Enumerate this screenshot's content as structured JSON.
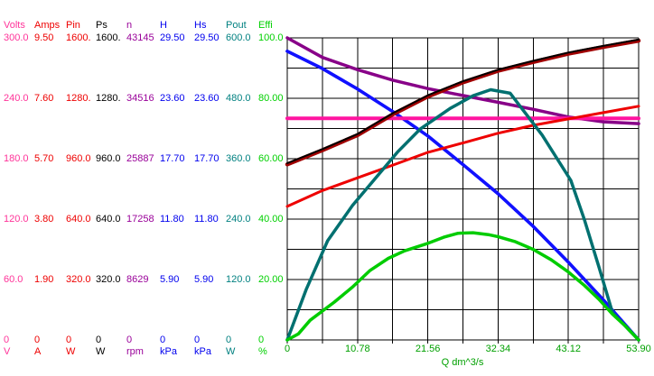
{
  "table": {
    "columns": [
      {
        "name": "Volts",
        "unit": "V",
        "color": "#FF3399",
        "values": [
          "300.0",
          "240.0",
          "180.0",
          "120.0",
          "60.0",
          "0"
        ]
      },
      {
        "name": "Amps",
        "unit": "A",
        "color": "#EE0000",
        "values": [
          "9.50",
          "7.60",
          "5.70",
          "3.80",
          "1.90",
          "0"
        ]
      },
      {
        "name": "Pin",
        "unit": "W",
        "color": "#EE0000",
        "values": [
          "1600.",
          "1280.",
          "960.0",
          "640.0",
          "320.0",
          "0"
        ]
      },
      {
        "name": "Ps",
        "unit": "W",
        "color": "#000000",
        "values": [
          "1600.",
          "1280.",
          "960.0",
          "640.0",
          "320.0",
          "0"
        ]
      },
      {
        "name": "n",
        "unit": "rpm",
        "color": "#990099",
        "values": [
          "43145",
          "34516",
          "25887",
          "17258",
          "8629",
          "0"
        ]
      },
      {
        "name": "H",
        "unit": "kPa",
        "color": "#0000EE",
        "values": [
          "29.50",
          "23.60",
          "17.70",
          "11.80",
          "5.90",
          "0"
        ]
      },
      {
        "name": "Hs",
        "unit": "kPa",
        "color": "#0000EE",
        "values": [
          "29.50",
          "23.60",
          "17.70",
          "11.80",
          "5.90",
          "0"
        ]
      },
      {
        "name": "Pout",
        "unit": "W",
        "color": "#008080",
        "values": [
          "600.0",
          "480.0",
          "360.0",
          "240.0",
          "120.0",
          "0"
        ]
      },
      {
        "name": "Effi",
        "unit": "%",
        "color": "#00D000",
        "values": [
          "100.0",
          "80.00",
          "60.00",
          "40.00",
          "20.00",
          "0"
        ]
      }
    ]
  },
  "chart_data": {
    "type": "line",
    "title": "",
    "xlabel": "Q dm^3/s",
    "ylabel": "multiple per-series axes (left columns)",
    "x_range": [
      0,
      53.9
    ],
    "x_ticks": [
      "0",
      "10.78",
      "21.56",
      "32.34",
      "43.12",
      "53.90"
    ],
    "grid": "10x10 divisions, black lines on white",
    "axis_color": "#00A000",
    "grid_color": "#000000",
    "background": "#FFFFFF",
    "legend_position": "left-column-table",
    "series": [
      {
        "name": "n",
        "unit": "rpm",
        "axis_max": 43145,
        "color": "#990099",
        "line": "#880088",
        "points": [
          [
            0,
            43145
          ],
          [
            5.4,
            40350
          ],
          [
            10.8,
            38600
          ],
          [
            16.2,
            37100
          ],
          [
            21.6,
            35900
          ],
          [
            27,
            34900
          ],
          [
            32.3,
            33950
          ],
          [
            37.7,
            32950
          ],
          [
            43.1,
            31850
          ],
          [
            48.5,
            31150
          ],
          [
            53.9,
            30900
          ]
        ]
      },
      {
        "name": "H",
        "unit": "kPa",
        "axis_max": 29.5,
        "color": "#0000EE",
        "line": "#1111FF",
        "points": [
          [
            0,
            28.2
          ],
          [
            5.4,
            26.5
          ],
          [
            10.8,
            24.5
          ],
          [
            16.2,
            22.3
          ],
          [
            21.6,
            19.9
          ],
          [
            27,
            17.1
          ],
          [
            32.3,
            14.3
          ],
          [
            37.7,
            11.1
          ],
          [
            43.1,
            7.6
          ],
          [
            48.5,
            3.9
          ],
          [
            53.9,
            0
          ]
        ]
      },
      {
        "name": "Hs",
        "unit": "kPa",
        "axis_max": 29.5,
        "color": "#0000EE",
        "line": "#1111FF",
        "points": [
          [
            0,
            28.2
          ],
          [
            5.4,
            26.5
          ],
          [
            10.8,
            24.5
          ],
          [
            16.2,
            22.3
          ],
          [
            21.6,
            19.9
          ],
          [
            27,
            17.1
          ],
          [
            32.3,
            14.3
          ],
          [
            37.7,
            11.1
          ],
          [
            43.1,
            7.6
          ],
          [
            48.5,
            3.9
          ],
          [
            53.9,
            0
          ]
        ]
      },
      {
        "name": "Volts",
        "unit": "V",
        "axis_max": 300,
        "color": "#FF3399",
        "line": "#FF14A0",
        "points": [
          [
            0,
            220
          ],
          [
            53.9,
            220
          ]
        ]
      },
      {
        "name": "Amps",
        "unit": "A",
        "axis_max": 9.5,
        "color": "#EE0000",
        "line": "#EE0000",
        "points": [
          [
            0,
            4.2
          ],
          [
            5.4,
            4.7
          ],
          [
            10.8,
            5.1
          ],
          [
            16.2,
            5.5
          ],
          [
            21.6,
            5.9
          ],
          [
            27,
            6.2
          ],
          [
            32.3,
            6.5
          ],
          [
            37.7,
            6.75
          ],
          [
            43.1,
            6.95
          ],
          [
            48.5,
            7.15
          ],
          [
            53.9,
            7.35
          ]
        ]
      },
      {
        "name": "Pin",
        "unit": "W",
        "axis_max": 1600,
        "color": "#EE0000",
        "line": "#A00000",
        "points": [
          [
            0,
            930
          ],
          [
            5.4,
            1005
          ],
          [
            10.8,
            1085
          ],
          [
            16.2,
            1195
          ],
          [
            21.6,
            1290
          ],
          [
            27,
            1365
          ],
          [
            32.3,
            1425
          ],
          [
            37.7,
            1472
          ],
          [
            43.1,
            1516
          ],
          [
            48.5,
            1552
          ],
          [
            53.9,
            1585
          ]
        ]
      },
      {
        "name": "Ps",
        "unit": "W",
        "axis_max": 1600,
        "color": "#000000",
        "line": "#000000",
        "points": [
          [
            0,
            936
          ],
          [
            5.4,
            1011
          ],
          [
            10.8,
            1091
          ],
          [
            16.2,
            1201
          ],
          [
            21.6,
            1296
          ],
          [
            27,
            1371
          ],
          [
            32.3,
            1431
          ],
          [
            37.7,
            1478
          ],
          [
            43.1,
            1522
          ],
          [
            48.5,
            1558
          ],
          [
            53.9,
            1591
          ]
        ]
      },
      {
        "name": "Pout",
        "unit": "W",
        "axis_max": 600,
        "color": "#008080",
        "line": "#007070",
        "points": [
          [
            0,
            0
          ],
          [
            2.9,
            100
          ],
          [
            6.2,
            197
          ],
          [
            10,
            267
          ],
          [
            16.9,
            373
          ],
          [
            20.4,
            419
          ],
          [
            25,
            460
          ],
          [
            28.5,
            485
          ],
          [
            31.2,
            497
          ],
          [
            34.2,
            490
          ],
          [
            39.1,
            407
          ],
          [
            43.5,
            317
          ],
          [
            45.6,
            238
          ],
          [
            47.8,
            145
          ],
          [
            49.9,
            54
          ],
          [
            53.9,
            0
          ]
        ]
      },
      {
        "name": "Effi",
        "unit": "%",
        "axis_max": 100,
        "color": "#00D000",
        "line": "#00CC00",
        "points": [
          [
            0,
            0
          ],
          [
            1.7,
            2
          ],
          [
            3.5,
            6.5
          ],
          [
            7.2,
            12.5
          ],
          [
            10,
            17.5
          ],
          [
            12.7,
            23
          ],
          [
            15.5,
            27
          ],
          [
            18,
            29.5
          ],
          [
            21.6,
            32
          ],
          [
            24,
            34
          ],
          [
            26.2,
            35.3
          ],
          [
            28.5,
            35.5
          ],
          [
            31,
            34.8
          ],
          [
            32.3,
            34.2
          ],
          [
            35,
            32.5
          ],
          [
            37.7,
            30
          ],
          [
            40.5,
            26.5
          ],
          [
            43.1,
            22.5
          ],
          [
            45.6,
            18
          ],
          [
            47.8,
            13.5
          ],
          [
            49.9,
            8.5
          ],
          [
            51.9,
            4.5
          ],
          [
            53.9,
            0
          ]
        ]
      }
    ]
  }
}
